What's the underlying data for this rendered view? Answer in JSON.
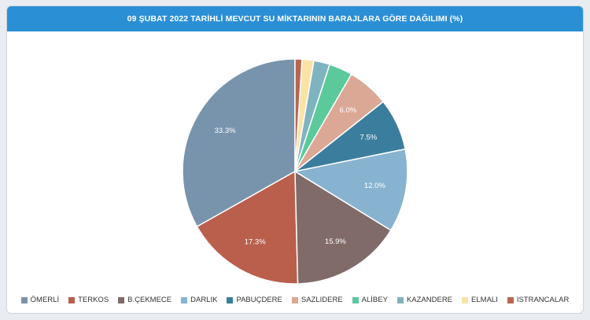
{
  "chart_data": {
    "type": "pie",
    "title": "09 ŞUBAT 2022 TARİHLİ MEVCUT SU MİKTARININ BARAJLARA GÖRE DAĞILIMI (%)",
    "slices": [
      {
        "name": "ÖMERLİ",
        "value": 33.3,
        "label": "33.3%",
        "color": "#7894ad"
      },
      {
        "name": "TERKOS",
        "value": 17.3,
        "label": "17.3%",
        "color": "#b95f4c"
      },
      {
        "name": "B.ÇEKMECE",
        "value": 15.9,
        "label": "15.9%",
        "color": "#806b69"
      },
      {
        "name": "DARLIK",
        "value": 12.0,
        "label": "12.0%",
        "color": "#88b3d0"
      },
      {
        "name": "PABUÇDERE",
        "value": 7.5,
        "label": "7.5%",
        "color": "#3b7d9d"
      },
      {
        "name": "SAZLIDERE",
        "value": 6.0,
        "label": "6.0%",
        "color": "#dba896"
      },
      {
        "name": "ALİBEY",
        "value": 3.4,
        "label": "",
        "color": "#5cc99b"
      },
      {
        "name": "KAZANDERE",
        "value": 2.3,
        "label": "",
        "color": "#7fb3bf"
      },
      {
        "name": "ELMALI",
        "value": 1.7,
        "label": "",
        "color": "#fbe3a7"
      },
      {
        "name": "ISTRANCALAR",
        "value": 1.0,
        "label": "",
        "color": "#b7664f"
      }
    ],
    "legend_position": "bottom"
  }
}
